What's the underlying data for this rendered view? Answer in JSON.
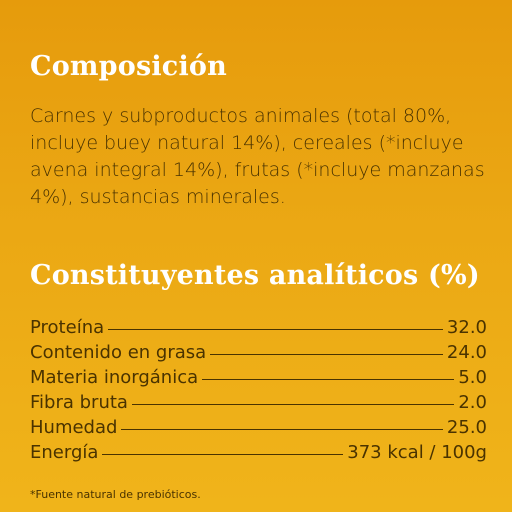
{
  "composition": {
    "title": "Composición",
    "text": "Carnes y subproductos animales (total 80%, incluye buey natural 14%), cereales (*incluye avena integral 14%), frutas (*incluye manzanas 4%), sustancias minerales."
  },
  "analytical": {
    "title": "Constituyentes analíticos (%)",
    "rows": [
      {
        "label": "Proteína",
        "value": "32.0"
      },
      {
        "label": "Contenido en grasa",
        "value": "24.0"
      },
      {
        "label": "Materia inorgánica",
        "value": "5.0"
      },
      {
        "label": "Fibra bruta",
        "value": "2.0"
      },
      {
        "label": "Humedad",
        "value": "25.0"
      },
      {
        "label": "Energía",
        "value": "373 kcal / 100g"
      }
    ]
  },
  "footnote": "*Fuente natural de prebióticos."
}
